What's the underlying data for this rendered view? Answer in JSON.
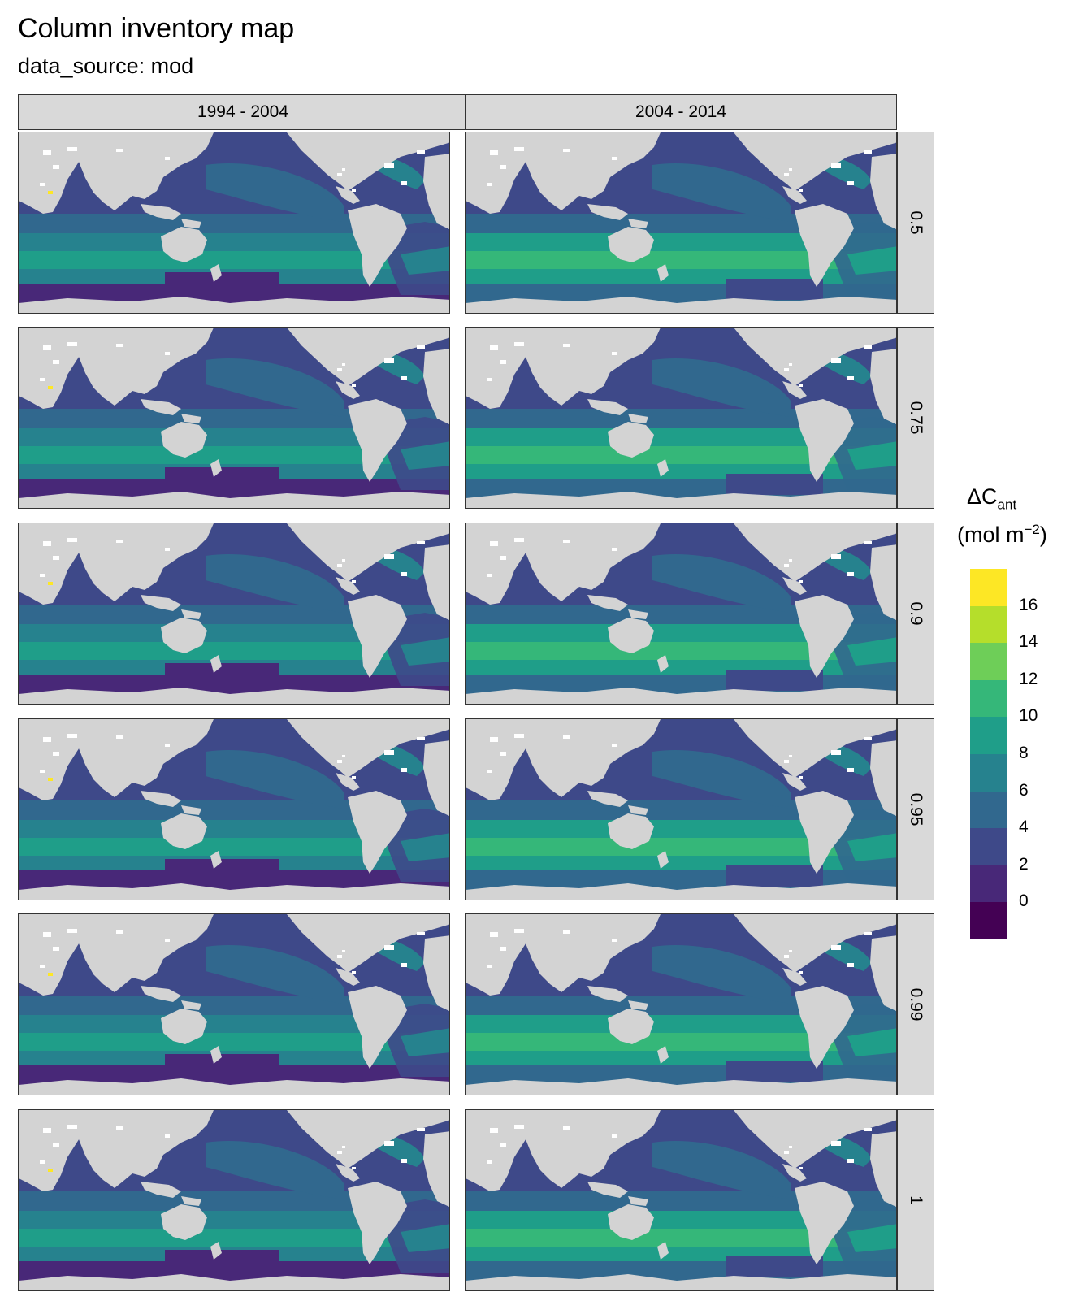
{
  "header": {
    "title": "Column inventory map",
    "subtitle": "data_source: mod"
  },
  "facets": {
    "columns": [
      "1994 - 2004",
      "2004 - 2014"
    ],
    "rows": [
      "0.5",
      "0.75",
      "0.9",
      "0.95",
      "0.99",
      "1"
    ]
  },
  "legend": {
    "title_main": "ΔC",
    "title_sub": "ant",
    "unit_open": "(mol m",
    "unit_exp": "−2",
    "unit_close": ")",
    "ticks": [
      "16",
      "14",
      "12",
      "10",
      "8",
      "6",
      "4",
      "2",
      "0"
    ],
    "colors": [
      "#fde725",
      "#b5de2b",
      "#6ece58",
      "#35b779",
      "#1f9e89",
      "#26828e",
      "#31688e",
      "#3e4989",
      "#482878",
      "#440154"
    ]
  },
  "colors": {
    "land": "#d3d3d3",
    "strip": "#d9d9d9",
    "ice": "#ffffff"
  }
}
